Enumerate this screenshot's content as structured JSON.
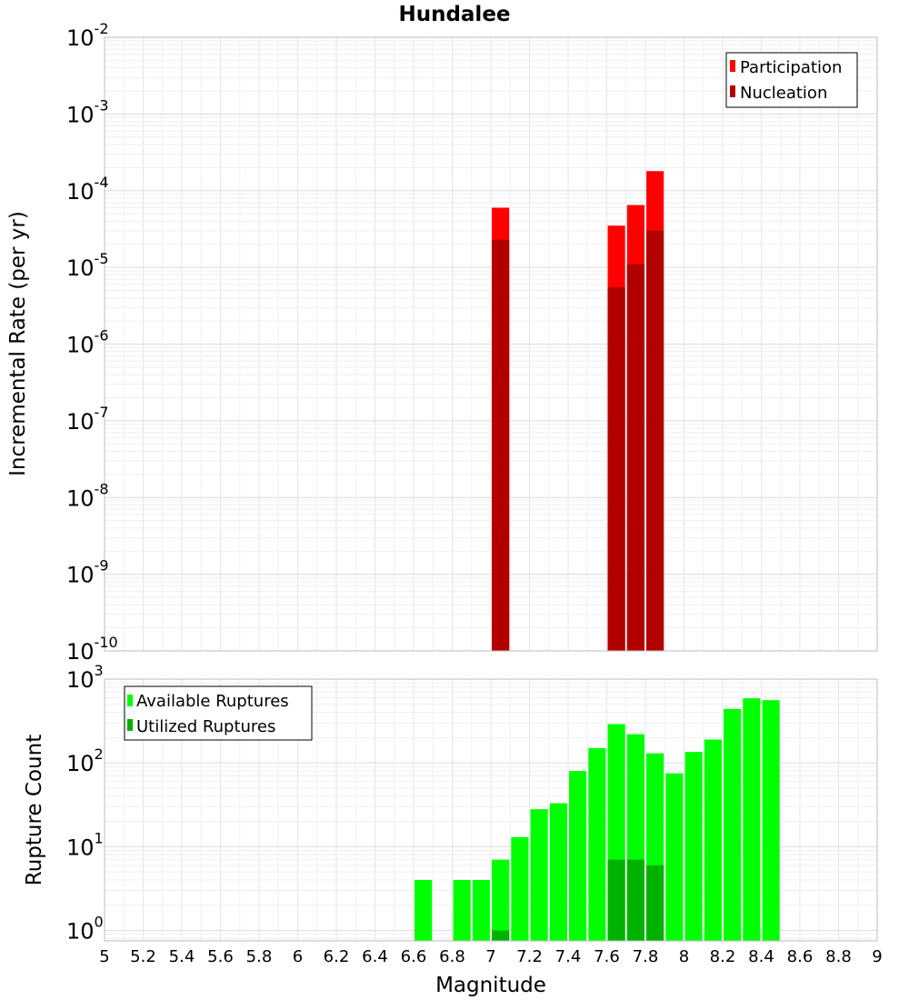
{
  "figure": {
    "title": "Hundalee",
    "xlabel": "Magnitude"
  },
  "chart_data": [
    {
      "type": "bar",
      "title": "Hundalee",
      "xlabel": "",
      "ylabel": "Incremental Rate (per yr)",
      "yscale": "log",
      "xlim": [
        5,
        9
      ],
      "ylim": [
        1e-10,
        0.01
      ],
      "grid": true,
      "legend_position": "top-right",
      "bar_width": 0.09,
      "series": [
        {
          "name": "Participation",
          "color": "#ff0000",
          "points": [
            {
              "x": 7.05,
              "y": 6e-05
            },
            {
              "x": 7.65,
              "y": 3.5e-05
            },
            {
              "x": 7.75,
              "y": 6.5e-05
            },
            {
              "x": 7.85,
              "y": 0.00018
            }
          ]
        },
        {
          "name": "Nucleation",
          "color": "#b20000",
          "points": [
            {
              "x": 7.05,
              "y": 2.3e-05
            },
            {
              "x": 7.65,
              "y": 5.5e-06
            },
            {
              "x": 7.75,
              "y": 1.1e-05
            },
            {
              "x": 7.85,
              "y": 3e-05
            }
          ]
        }
      ]
    },
    {
      "type": "bar",
      "xlabel": "Magnitude",
      "ylabel": "Rupture Count",
      "yscale": "log",
      "xlim": [
        5,
        9
      ],
      "ylim": [
        0.75,
        1000
      ],
      "grid": true,
      "legend_position": "top-left",
      "bar_width": 0.09,
      "series": [
        {
          "name": "Available Ruptures",
          "color": "#00ff00",
          "points": [
            {
              "x": 6.65,
              "y": 4
            },
            {
              "x": 6.85,
              "y": 4
            },
            {
              "x": 6.95,
              "y": 4
            },
            {
              "x": 7.05,
              "y": 7
            },
            {
              "x": 7.15,
              "y": 13
            },
            {
              "x": 7.25,
              "y": 28
            },
            {
              "x": 7.35,
              "y": 33
            },
            {
              "x": 7.45,
              "y": 80
            },
            {
              "x": 7.55,
              "y": 150
            },
            {
              "x": 7.65,
              "y": 290
            },
            {
              "x": 7.75,
              "y": 220
            },
            {
              "x": 7.85,
              "y": 130
            },
            {
              "x": 7.95,
              "y": 75
            },
            {
              "x": 8.05,
              "y": 135
            },
            {
              "x": 8.15,
              "y": 190
            },
            {
              "x": 8.25,
              "y": 440
            },
            {
              "x": 8.35,
              "y": 590
            },
            {
              "x": 8.45,
              "y": 560
            }
          ]
        },
        {
          "name": "Utilized Ruptures",
          "color": "#00b200",
          "points": [
            {
              "x": 7.05,
              "y": 1
            },
            {
              "x": 7.65,
              "y": 7
            },
            {
              "x": 7.75,
              "y": 7
            },
            {
              "x": 7.85,
              "y": 6
            }
          ]
        }
      ]
    }
  ],
  "x_ticks": [
    "5",
    "5.2",
    "5.4",
    "5.6",
    "5.8",
    "6",
    "6.2",
    "6.4",
    "6.6",
    "6.8",
    "7",
    "7.2",
    "7.4",
    "7.6",
    "7.8",
    "8",
    "8.2",
    "8.4",
    "8.6",
    "8.8",
    "9"
  ],
  "top_y_ticks": [
    {
      "base": "10",
      "exp": "-10"
    },
    {
      "base": "10",
      "exp": "-9"
    },
    {
      "base": "10",
      "exp": "-8"
    },
    {
      "base": "10",
      "exp": "-7"
    },
    {
      "base": "10",
      "exp": "-6"
    },
    {
      "base": "10",
      "exp": "-5"
    },
    {
      "base": "10",
      "exp": "-4"
    },
    {
      "base": "10",
      "exp": "-3"
    },
    {
      "base": "10",
      "exp": "-2"
    }
  ],
  "bottom_y_ticks": [
    {
      "base": "10",
      "exp": "0"
    },
    {
      "base": "10",
      "exp": "1"
    },
    {
      "base": "10",
      "exp": "2"
    },
    {
      "base": "10",
      "exp": "3"
    }
  ]
}
